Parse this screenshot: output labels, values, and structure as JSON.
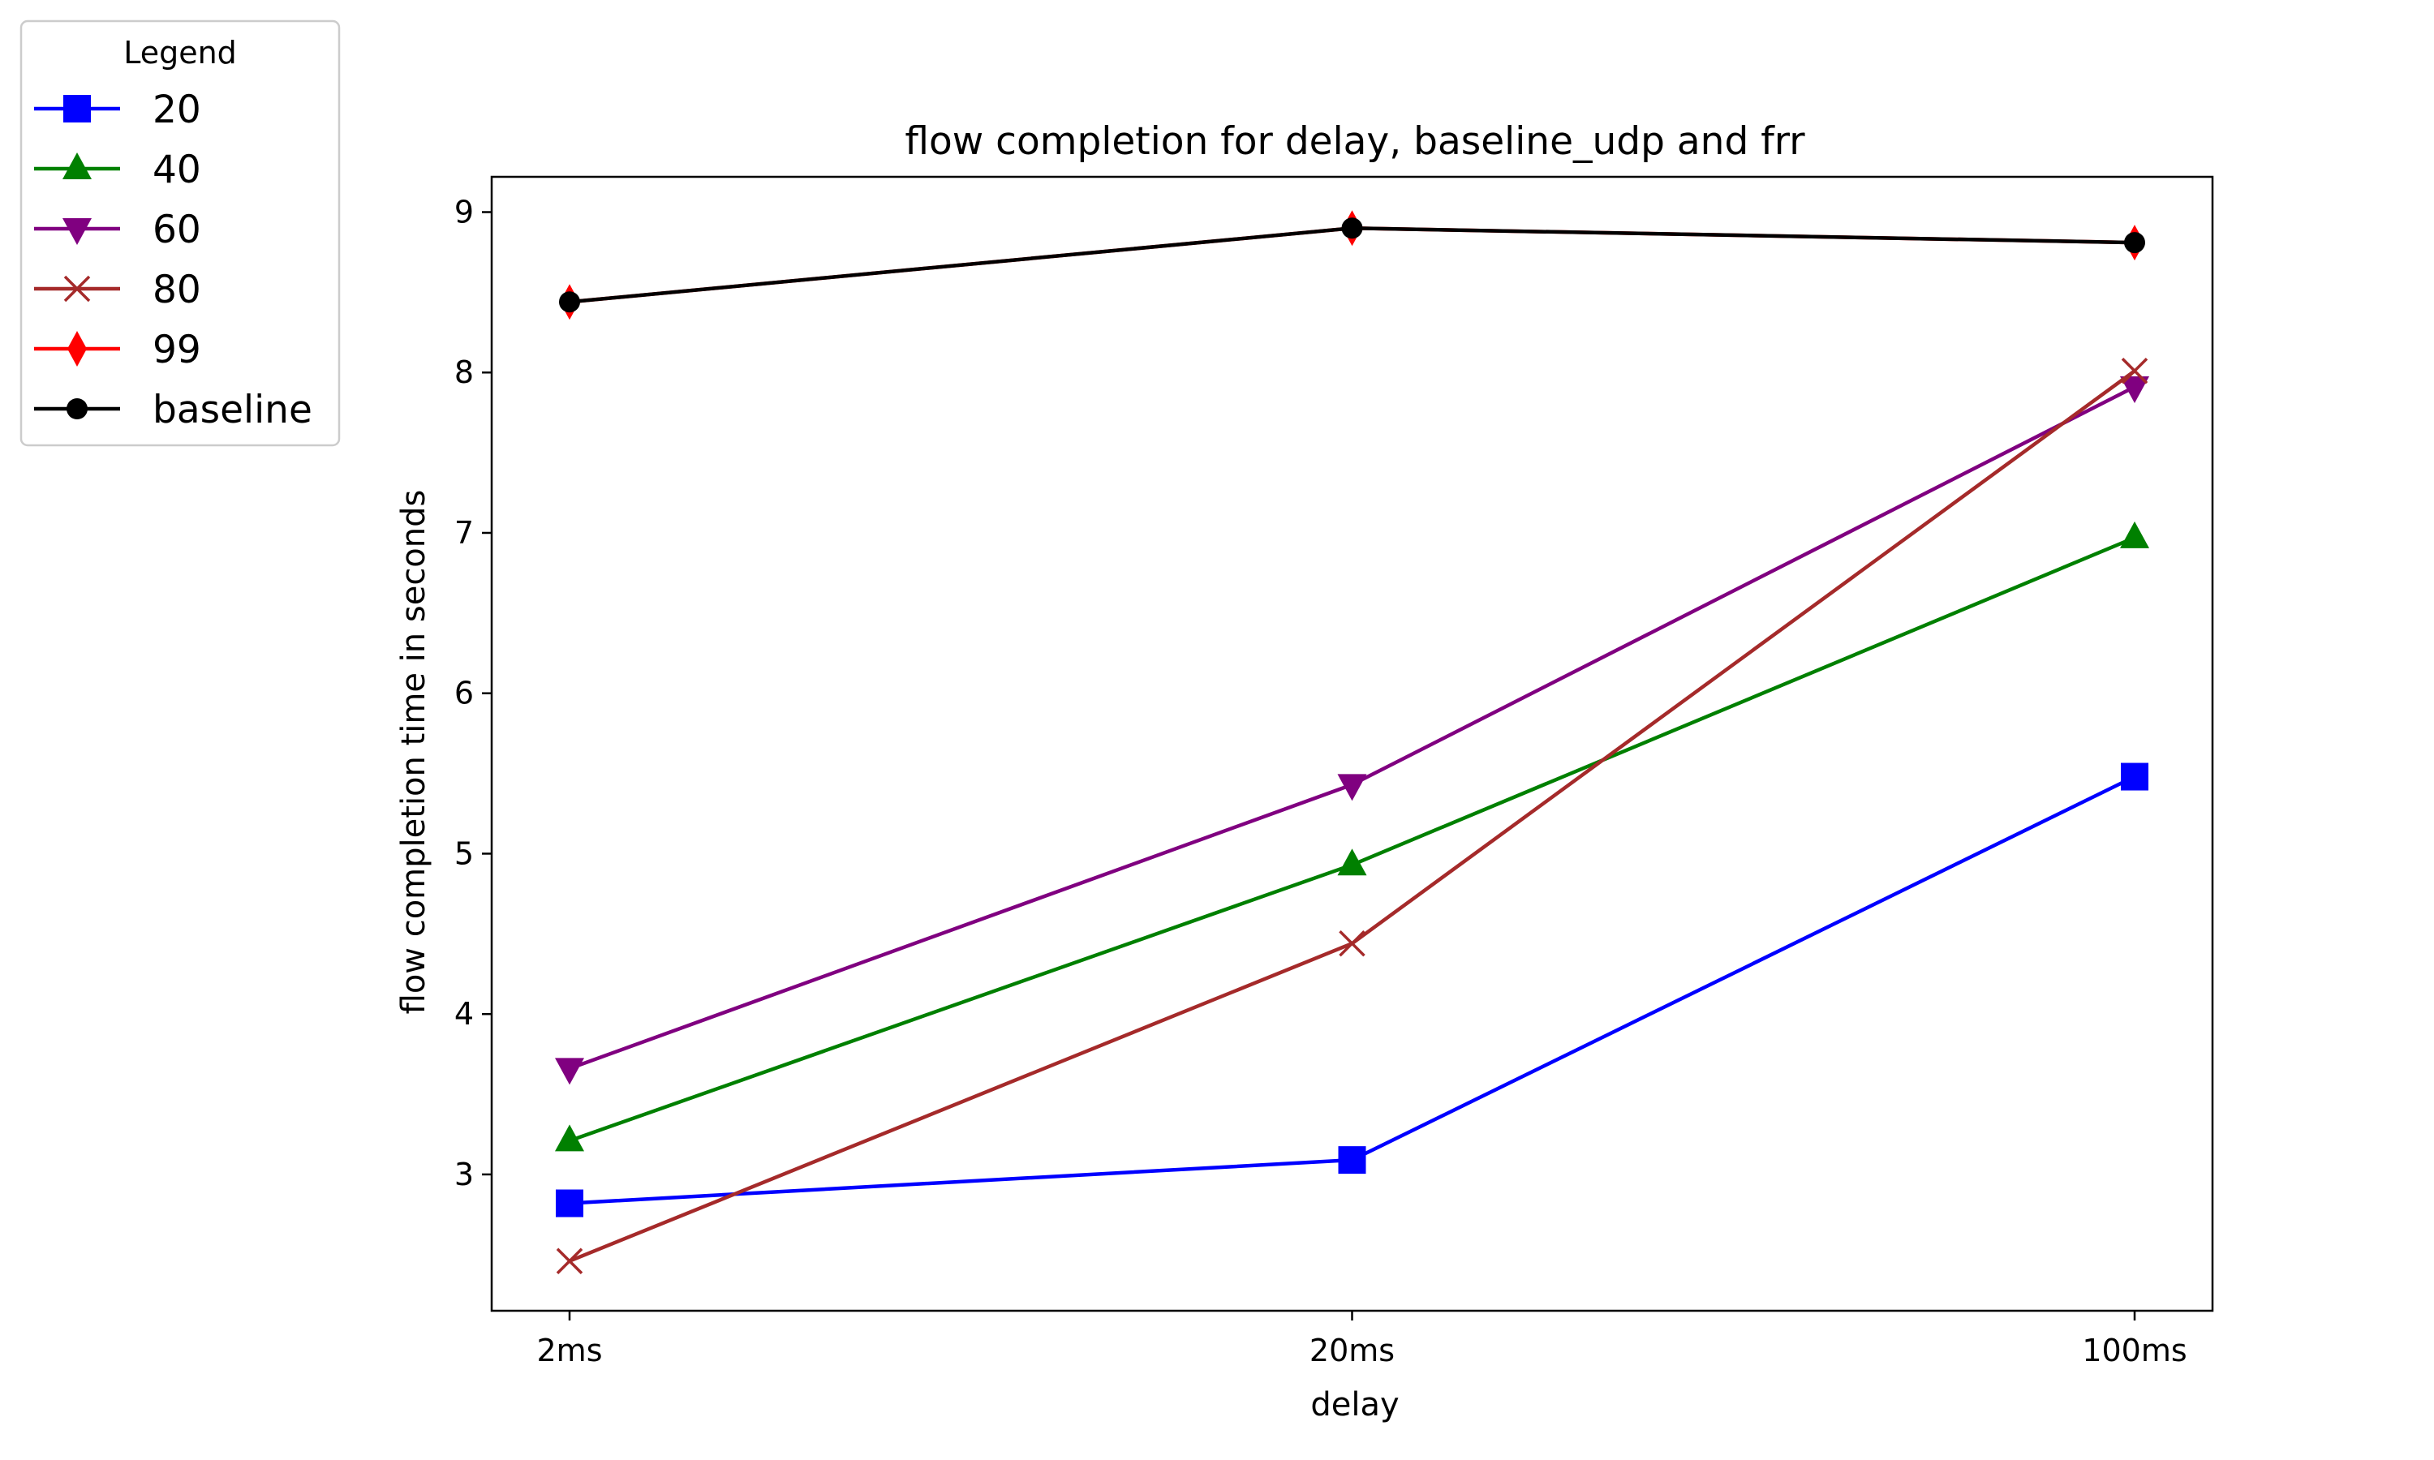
{
  "chart_data": {
    "type": "line",
    "title": "flow completion for delay, baseline_udp and frr",
    "xlabel": "delay",
    "ylabel": "flow completion time in seconds",
    "categories": [
      "2ms",
      "20ms",
      "100ms"
    ],
    "ylim": [
      2.15,
      9.22
    ],
    "yticks": [
      3,
      4,
      5,
      6,
      7,
      8,
      9
    ],
    "grid": false,
    "legend": {
      "title": "Legend",
      "placement": "outside-top-left"
    },
    "series": [
      {
        "name": "20",
        "color": "#0000ff",
        "marker": "square",
        "values": [
          2.82,
          3.09,
          5.48
        ]
      },
      {
        "name": "40",
        "color": "#008000",
        "marker": "triangle-up",
        "values": [
          3.21,
          4.93,
          6.97
        ]
      },
      {
        "name": "60",
        "color": "#800080",
        "marker": "triangle-down",
        "values": [
          3.66,
          5.43,
          7.91
        ]
      },
      {
        "name": "80",
        "color": "#a52a2a",
        "marker": "x",
        "values": [
          2.46,
          4.44,
          8.01
        ]
      },
      {
        "name": "99",
        "color": "#ff0000",
        "marker": "diamond",
        "values": [
          8.44,
          8.9,
          8.81
        ]
      },
      {
        "name": "baseline",
        "color": "#000000",
        "marker": "circle",
        "values": [
          8.44,
          8.9,
          8.81
        ]
      }
    ]
  }
}
